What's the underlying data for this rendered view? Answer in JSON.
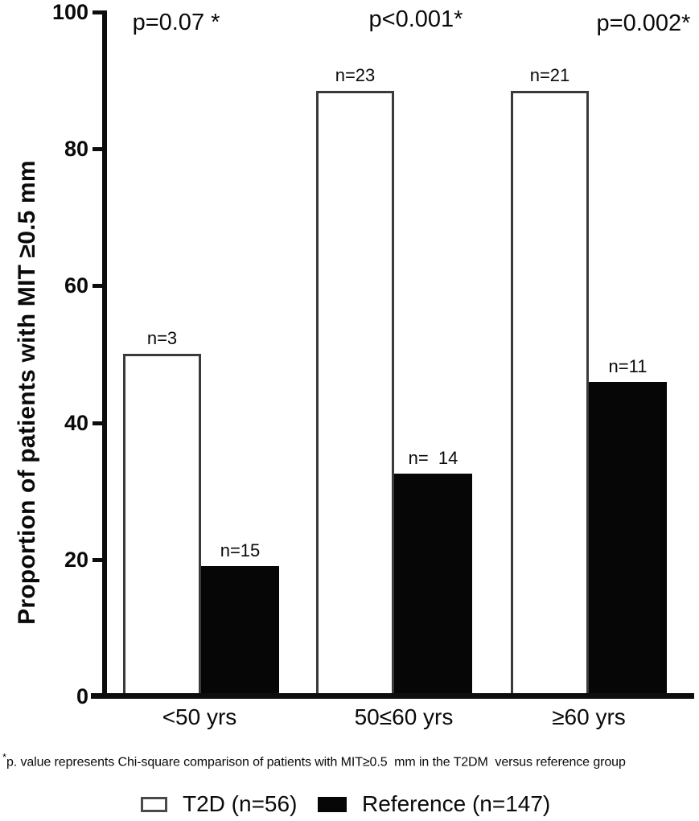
{
  "chart_data": {
    "type": "bar",
    "title": "",
    "xlabel": "",
    "ylabel": "Proportion of patients with MIT ≥0.5 mm",
    "ylim": [
      0,
      100
    ],
    "yticks": [
      0,
      20,
      40,
      60,
      80,
      100
    ],
    "grid": false,
    "legend_position": "bottom",
    "categories": [
      "<50 yrs",
      "50≤60 yrs",
      "≥60 yrs"
    ],
    "series": [
      {
        "name": "T2D (n=56)",
        "fill": "#ffffff",
        "border_color": "#3a3a3a",
        "values": [
          50,
          88.5,
          88.5
        ],
        "bar_labels": [
          "n=3",
          "n=23",
          "n=21"
        ]
      },
      {
        "name": "Reference (n=147)",
        "fill": "#060606",
        "border_color": "#060606",
        "values": [
          19,
          32.5,
          46
        ],
        "bar_labels": [
          "n=15",
          "n=  14",
          "n=11"
        ]
      }
    ],
    "p_value_annotations": [
      "p=0.07 *",
      "p<0.001*",
      "p=0.002*"
    ],
    "footnote_marker": "*",
    "footnote": "p. value represents Chi-square comparison of patients with MIT≥0.5  mm in the T2DM  versus reference group",
    "legend": [
      {
        "label": "T2D (n=56)",
        "fill": "#ffffff"
      },
      {
        "label": "Reference (n=147)",
        "fill": "#060606"
      }
    ]
  }
}
